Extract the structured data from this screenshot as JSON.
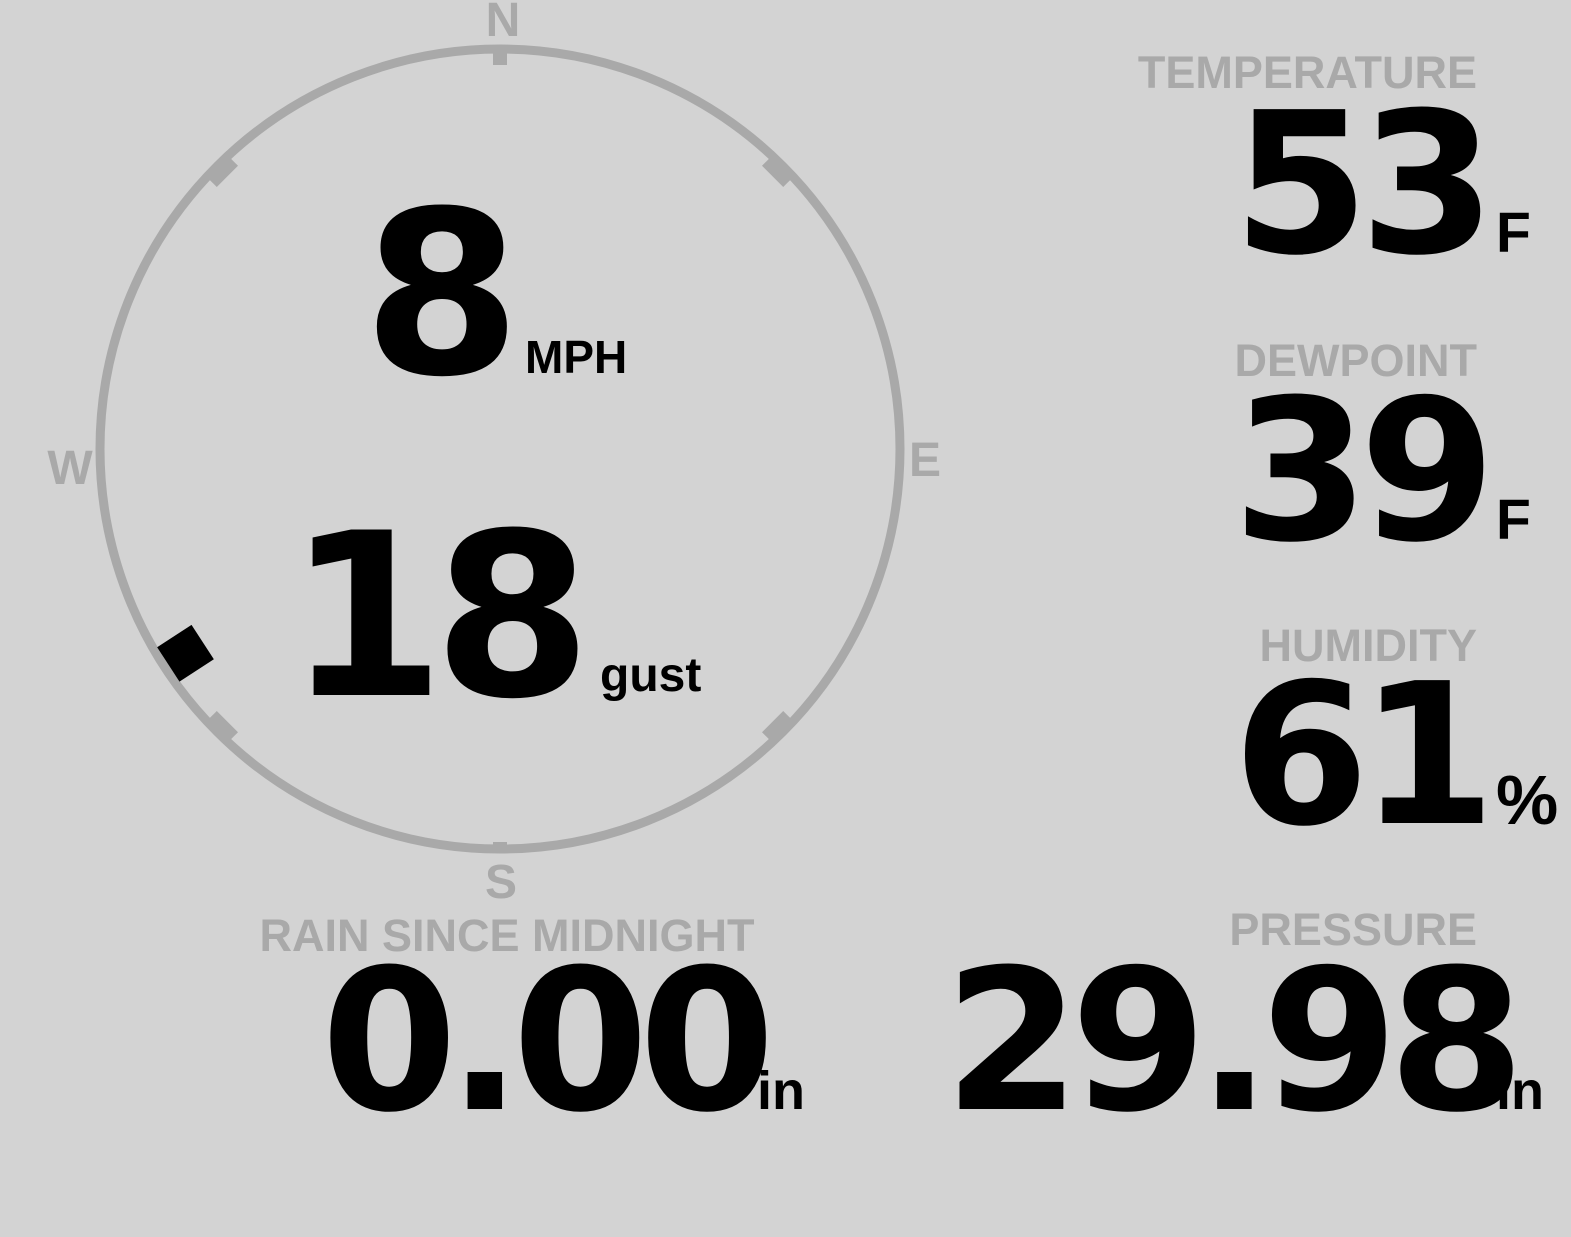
{
  "colors": {
    "background": "#d3d3d3",
    "muted": "#a9a9a9",
    "foreground": "#000000"
  },
  "wind": {
    "speed": "8",
    "speed_unit": "MPH",
    "gust": "18",
    "gust_unit": "gust",
    "direction_degrees": 237,
    "compass": {
      "north": "N",
      "east": "E",
      "south": "S",
      "west": "W"
    }
  },
  "temperature": {
    "label": "TEMPERATURE",
    "value": "53",
    "unit": "F"
  },
  "dewpoint": {
    "label": "DEWPOINT",
    "value": "39",
    "unit": "F"
  },
  "humidity": {
    "label": "HUMIDITY",
    "value": "61",
    "unit": "%"
  },
  "rain": {
    "label": "RAIN SINCE MIDNIGHT",
    "value": "0.00",
    "unit": "in"
  },
  "pressure": {
    "label": "PRESSURE",
    "value": "29.98",
    "unit": "in"
  }
}
